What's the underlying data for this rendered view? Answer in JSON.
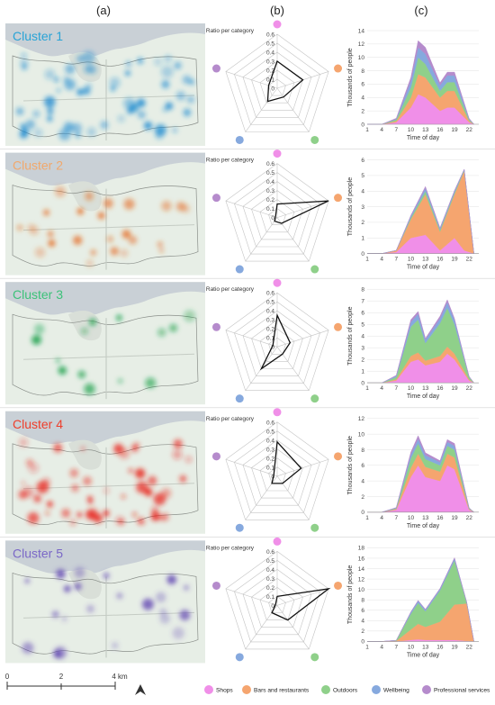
{
  "panel_labels": [
    "(a)",
    "(b)",
    "(c)"
  ],
  "colors": {
    "shops": "#f08fe8",
    "bars": "#f5a56f",
    "outdoors": "#8fd08a",
    "wellbeing": "#86a9de",
    "professional": "#b58bcc",
    "water": "#c9d0d6",
    "land": "#e7eee6"
  },
  "radar_categories": [
    "Shops",
    "Bars and restaurants",
    "Outdoors",
    "Wellbeing",
    "Professional services"
  ],
  "radar_axis_label": "Ratio per category",
  "radar_ticks": [
    "0.6",
    "0.5",
    "0.4",
    "0.3",
    "0.2",
    "0.1",
    "0"
  ],
  "area_ylabel": "Thousands of people",
  "area_xlabel": "Time of day",
  "area_xticks": [
    "1",
    "4",
    "7",
    "10",
    "13",
    "16",
    "19",
    "22"
  ],
  "map_scale": {
    "labels": [
      "0",
      "2",
      "4 km"
    ]
  },
  "legend": {
    "items": [
      {
        "label": "Shops",
        "key": "shops"
      },
      {
        "label": "Bars and restaurants",
        "key": "bars"
      },
      {
        "label": "Outdoors",
        "key": "outdoors"
      },
      {
        "label": "Wellbeing",
        "key": "wellbeing"
      },
      {
        "label": "Professional services",
        "key": "professional"
      }
    ]
  },
  "chart_data": [
    {
      "type": "area",
      "cluster": "Cluster 1",
      "cluster_color": "#29a3d6",
      "map_color": "#1e8bd0",
      "radar": [
        0.3,
        0.3,
        0.12,
        0.18,
        0.1
      ],
      "ylim": [
        0,
        14
      ],
      "yticks": [
        0,
        2,
        4,
        6,
        8,
        10,
        12,
        14
      ],
      "x": [
        1,
        4,
        7,
        10,
        11.5,
        13,
        16,
        17.5,
        19,
        22,
        23
      ],
      "series": [
        {
          "key": "shops",
          "values": [
            0,
            0,
            0.3,
            2.5,
            4.5,
            4,
            2,
            2.5,
            2.5,
            0.3,
            0
          ]
        },
        {
          "key": "bars",
          "values": [
            0,
            0,
            0.2,
            1.5,
            3,
            3,
            2,
            2.5,
            2.5,
            0.2,
            0
          ]
        },
        {
          "key": "outdoors",
          "values": [
            0,
            0,
            0.2,
            1.5,
            2.5,
            2,
            1,
            1.3,
            1.3,
            0.2,
            0
          ]
        },
        {
          "key": "wellbeing",
          "values": [
            0,
            0,
            0.1,
            1,
            1.5,
            1.5,
            0.8,
            1,
            1,
            0.1,
            0
          ]
        },
        {
          "key": "professional",
          "values": [
            0,
            0,
            0.1,
            0.5,
            1,
            1,
            0.4,
            0.5,
            0.5,
            0.1,
            0
          ]
        }
      ]
    },
    {
      "type": "area",
      "cluster": "Cluster 2",
      "cluster_color": "#f1a86c",
      "map_color": "#e4671c",
      "radar": [
        0.15,
        0.62,
        0.08,
        0.05,
        0.02
      ],
      "ylim": [
        0,
        6
      ],
      "yticks": [
        0,
        1,
        2,
        3,
        4,
        5,
        6
      ],
      "x": [
        1,
        4,
        7,
        10,
        13,
        16,
        19,
        21,
        23
      ],
      "series": [
        {
          "key": "shops",
          "values": [
            0,
            0,
            0.1,
            1,
            1.2,
            0.2,
            1,
            0.2,
            0
          ]
        },
        {
          "key": "bars",
          "values": [
            0,
            0,
            0.1,
            1.2,
            2.6,
            1.2,
            2.8,
            5.1,
            0
          ]
        },
        {
          "key": "outdoors",
          "values": [
            0,
            0,
            0,
            0.1,
            0.2,
            0.1,
            0.1,
            0.05,
            0
          ]
        },
        {
          "key": "wellbeing",
          "values": [
            0,
            0,
            0,
            0.1,
            0.2,
            0.1,
            0.1,
            0.05,
            0
          ]
        },
        {
          "key": "professional",
          "values": [
            0,
            0,
            0,
            0.05,
            0.1,
            0.05,
            0.05,
            0,
            0
          ]
        }
      ]
    },
    {
      "type": "area",
      "cluster": "Cluster 3",
      "cluster_color": "#3cc279",
      "map_color": "#109e45",
      "radar": [
        0.35,
        0.15,
        0.1,
        0.3,
        0.05
      ],
      "ylim": [
        0,
        8
      ],
      "yticks": [
        0,
        1,
        2,
        3,
        4,
        5,
        6,
        7,
        8
      ],
      "x": [
        1,
        4,
        7,
        10,
        11.5,
        13,
        16,
        17.5,
        19,
        22,
        23
      ],
      "series": [
        {
          "key": "shops",
          "values": [
            0,
            0,
            0.2,
            1.8,
            2,
            1.5,
            1.8,
            2.5,
            2,
            0.2,
            0
          ]
        },
        {
          "key": "bars",
          "values": [
            0,
            0,
            0.1,
            0.5,
            0.6,
            0.4,
            0.5,
            0.6,
            0.5,
            0.1,
            0
          ]
        },
        {
          "key": "outdoors",
          "values": [
            0,
            0,
            0.2,
            2.5,
            2.8,
            1.5,
            2.8,
            3.3,
            2.5,
            0.2,
            0
          ]
        },
        {
          "key": "wellbeing",
          "values": [
            0,
            0,
            0.1,
            0.4,
            0.5,
            0.3,
            0.4,
            0.5,
            0.4,
            0.05,
            0
          ]
        },
        {
          "key": "professional",
          "values": [
            0,
            0,
            0.05,
            0.2,
            0.2,
            0.1,
            0.2,
            0.2,
            0.1,
            0,
            0
          ]
        }
      ]
    },
    {
      "type": "area",
      "cluster": "Cluster 4",
      "cluster_color": "#ee3e2b",
      "map_color": "#e8231a",
      "radar": [
        0.38,
        0.28,
        0.1,
        0.1,
        0.04
      ],
      "ylim": [
        0,
        12
      ],
      "yticks": [
        0,
        2,
        4,
        6,
        8,
        10,
        12
      ],
      "x": [
        1,
        4,
        7,
        10,
        11.5,
        13,
        16,
        17.5,
        19,
        22,
        23
      ],
      "series": [
        {
          "key": "shops",
          "values": [
            0,
            0,
            0.3,
            4.5,
            6,
            4.5,
            4,
            6,
            5.5,
            0.3,
            0
          ]
        },
        {
          "key": "bars",
          "values": [
            0,
            0,
            0.1,
            1.2,
            1.5,
            1.3,
            1.2,
            1.5,
            1.5,
            0.1,
            0
          ]
        },
        {
          "key": "outdoors",
          "values": [
            0,
            0,
            0.1,
            1.2,
            1.3,
            1,
            0.8,
            1,
            1,
            0.1,
            0
          ]
        },
        {
          "key": "wellbeing",
          "values": [
            0,
            0,
            0.05,
            0.5,
            0.6,
            0.5,
            0.4,
            0.5,
            0.5,
            0.05,
            0
          ]
        },
        {
          "key": "professional",
          "values": [
            0,
            0,
            0.05,
            0.3,
            0.4,
            0.3,
            0.2,
            0.3,
            0.3,
            0,
            0
          ]
        }
      ]
    },
    {
      "type": "area",
      "cluster": "Cluster 5",
      "cluster_color": "#7a67c7",
      "map_color": "#5b3fb0",
      "radar": [
        0.1,
        0.62,
        0.2,
        0.1,
        0.02
      ],
      "ylim": [
        0,
        18
      ],
      "yticks": [
        0,
        2,
        4,
        6,
        8,
        10,
        12,
        14,
        16,
        18
      ],
      "x": [
        1,
        4,
        7,
        10,
        11.5,
        13,
        16,
        19,
        21.5,
        23
      ],
      "series": [
        {
          "key": "shops",
          "values": [
            0,
            0,
            0,
            0.3,
            0.4,
            0.3,
            0.3,
            0.3,
            0.1,
            0
          ]
        },
        {
          "key": "bars",
          "values": [
            0,
            0,
            0.1,
            2,
            3,
            2.5,
            3.5,
            6.8,
            7.2,
            0
          ]
        },
        {
          "key": "outdoors",
          "values": [
            0,
            0,
            0.1,
            3,
            4,
            3,
            6,
            8.5,
            0.2,
            0
          ]
        },
        {
          "key": "wellbeing",
          "values": [
            0,
            0,
            0,
            0.3,
            0.4,
            0.3,
            0.3,
            0.4,
            0.1,
            0
          ]
        },
        {
          "key": "professional",
          "values": [
            0,
            0,
            0,
            0.1,
            0.1,
            0.1,
            0.1,
            0.1,
            0,
            0
          ]
        }
      ]
    }
  ]
}
